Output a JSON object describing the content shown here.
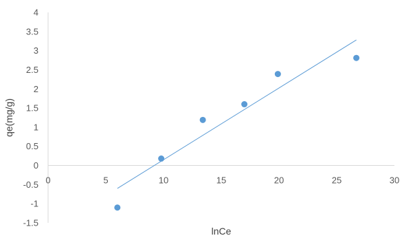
{
  "chart_data": {
    "type": "scatter",
    "xlabel": "lnCe",
    "ylabel": "qe(mg/g)",
    "xlim": [
      0,
      30
    ],
    "ylim": [
      -1.5,
      4
    ],
    "x_ticks": [
      0,
      5,
      10,
      15,
      20,
      25,
      30
    ],
    "y_ticks": [
      -1.5,
      -1,
      -0.5,
      0,
      0.5,
      1,
      1.5,
      2,
      2.5,
      3,
      3.5,
      4
    ],
    "grid": false,
    "legend": "none",
    "series": [
      {
        "points": [
          {
            "x": 6.0,
            "y": -1.1
          },
          {
            "x": 9.8,
            "y": 0.18
          },
          {
            "x": 13.4,
            "y": 1.19
          },
          {
            "x": 17.0,
            "y": 1.6
          },
          {
            "x": 19.9,
            "y": 2.39
          },
          {
            "x": 26.7,
            "y": 2.81
          }
        ],
        "color": "#5b9bd5"
      }
    ],
    "trendline": {
      "type": "linear",
      "x_range": [
        6.0,
        26.7
      ],
      "y_range": [
        -0.6,
        3.28
      ],
      "color": "#5b9bd5"
    }
  }
}
